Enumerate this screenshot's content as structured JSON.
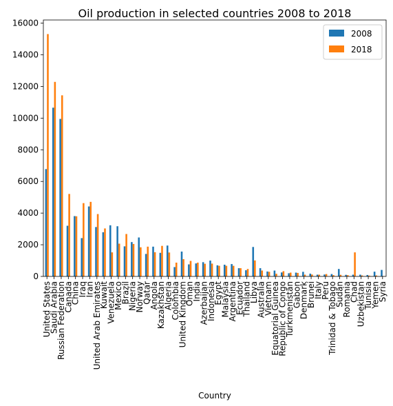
{
  "chart_data": {
    "type": "bar",
    "title": "Oil production in selected countries 2008 to 2018",
    "xlabel": "Country",
    "ylabel": "",
    "ylim": [
      0,
      16200
    ],
    "yticks": [
      0,
      2000,
      4000,
      6000,
      8000,
      10000,
      12000,
      14000,
      16000
    ],
    "grid": false,
    "legend_position": "top-right",
    "categories": [
      "United States",
      "Saudi Arabia",
      "Russian Federation",
      "Canada",
      "China",
      "Iraq",
      "Iran",
      "United Arab Emirates",
      "Kuwait",
      "Venezuela",
      "Mexico",
      "Brazil",
      "Nigeria",
      "Norway",
      "Qatar",
      "Angola",
      "Kazakhstan",
      "Algeria",
      "Colombia",
      "United Kingdom",
      "Oman",
      "India",
      "Azerbaijan",
      "Indonesia",
      "Egypt",
      "Malaysia",
      "Argentina",
      "Ecuador",
      "Thailand",
      "Libya",
      "Australia",
      "Vietnam",
      "Equatorial Guinea",
      "Republic of Congo",
      "Turkmenistan",
      "Gabon",
      "Denmark",
      "Brunei",
      "Italy",
      "Peru",
      "Trinidad & Tobago",
      "Sudan",
      "Romania",
      "Chad",
      "Uzbekistan",
      "Tunisia",
      "Yemen",
      "Syria"
    ],
    "series": [
      {
        "name": "2008",
        "color": "#1f77b4",
        "values": [
          6780,
          10660,
          9950,
          3200,
          3810,
          2420,
          4420,
          3120,
          2790,
          3230,
          3170,
          1900,
          2170,
          2460,
          1420,
          1880,
          1490,
          1950,
          590,
          1570,
          760,
          820,
          900,
          1000,
          700,
          740,
          780,
          520,
          390,
          1860,
          520,
          310,
          370,
          250,
          200,
          240,
          290,
          175,
          110,
          120,
          150,
          470,
          100,
          110,
          110,
          90,
          300,
          410
        ]
      },
      {
        "name": "2018",
        "color": "#ff7f0e",
        "values": [
          15310,
          12290,
          11440,
          5210,
          3800,
          4630,
          4710,
          3940,
          3030,
          1520,
          2070,
          2680,
          2050,
          1840,
          1880,
          1530,
          1930,
          1510,
          870,
          1090,
          980,
          870,
          800,
          810,
          670,
          670,
          670,
          520,
          470,
          1010,
          370,
          290,
          170,
          330,
          240,
          220,
          110,
          120,
          110,
          150,
          80,
          100,
          80,
          1520,
          60,
          50,
          60,
          20
        ]
      }
    ]
  }
}
